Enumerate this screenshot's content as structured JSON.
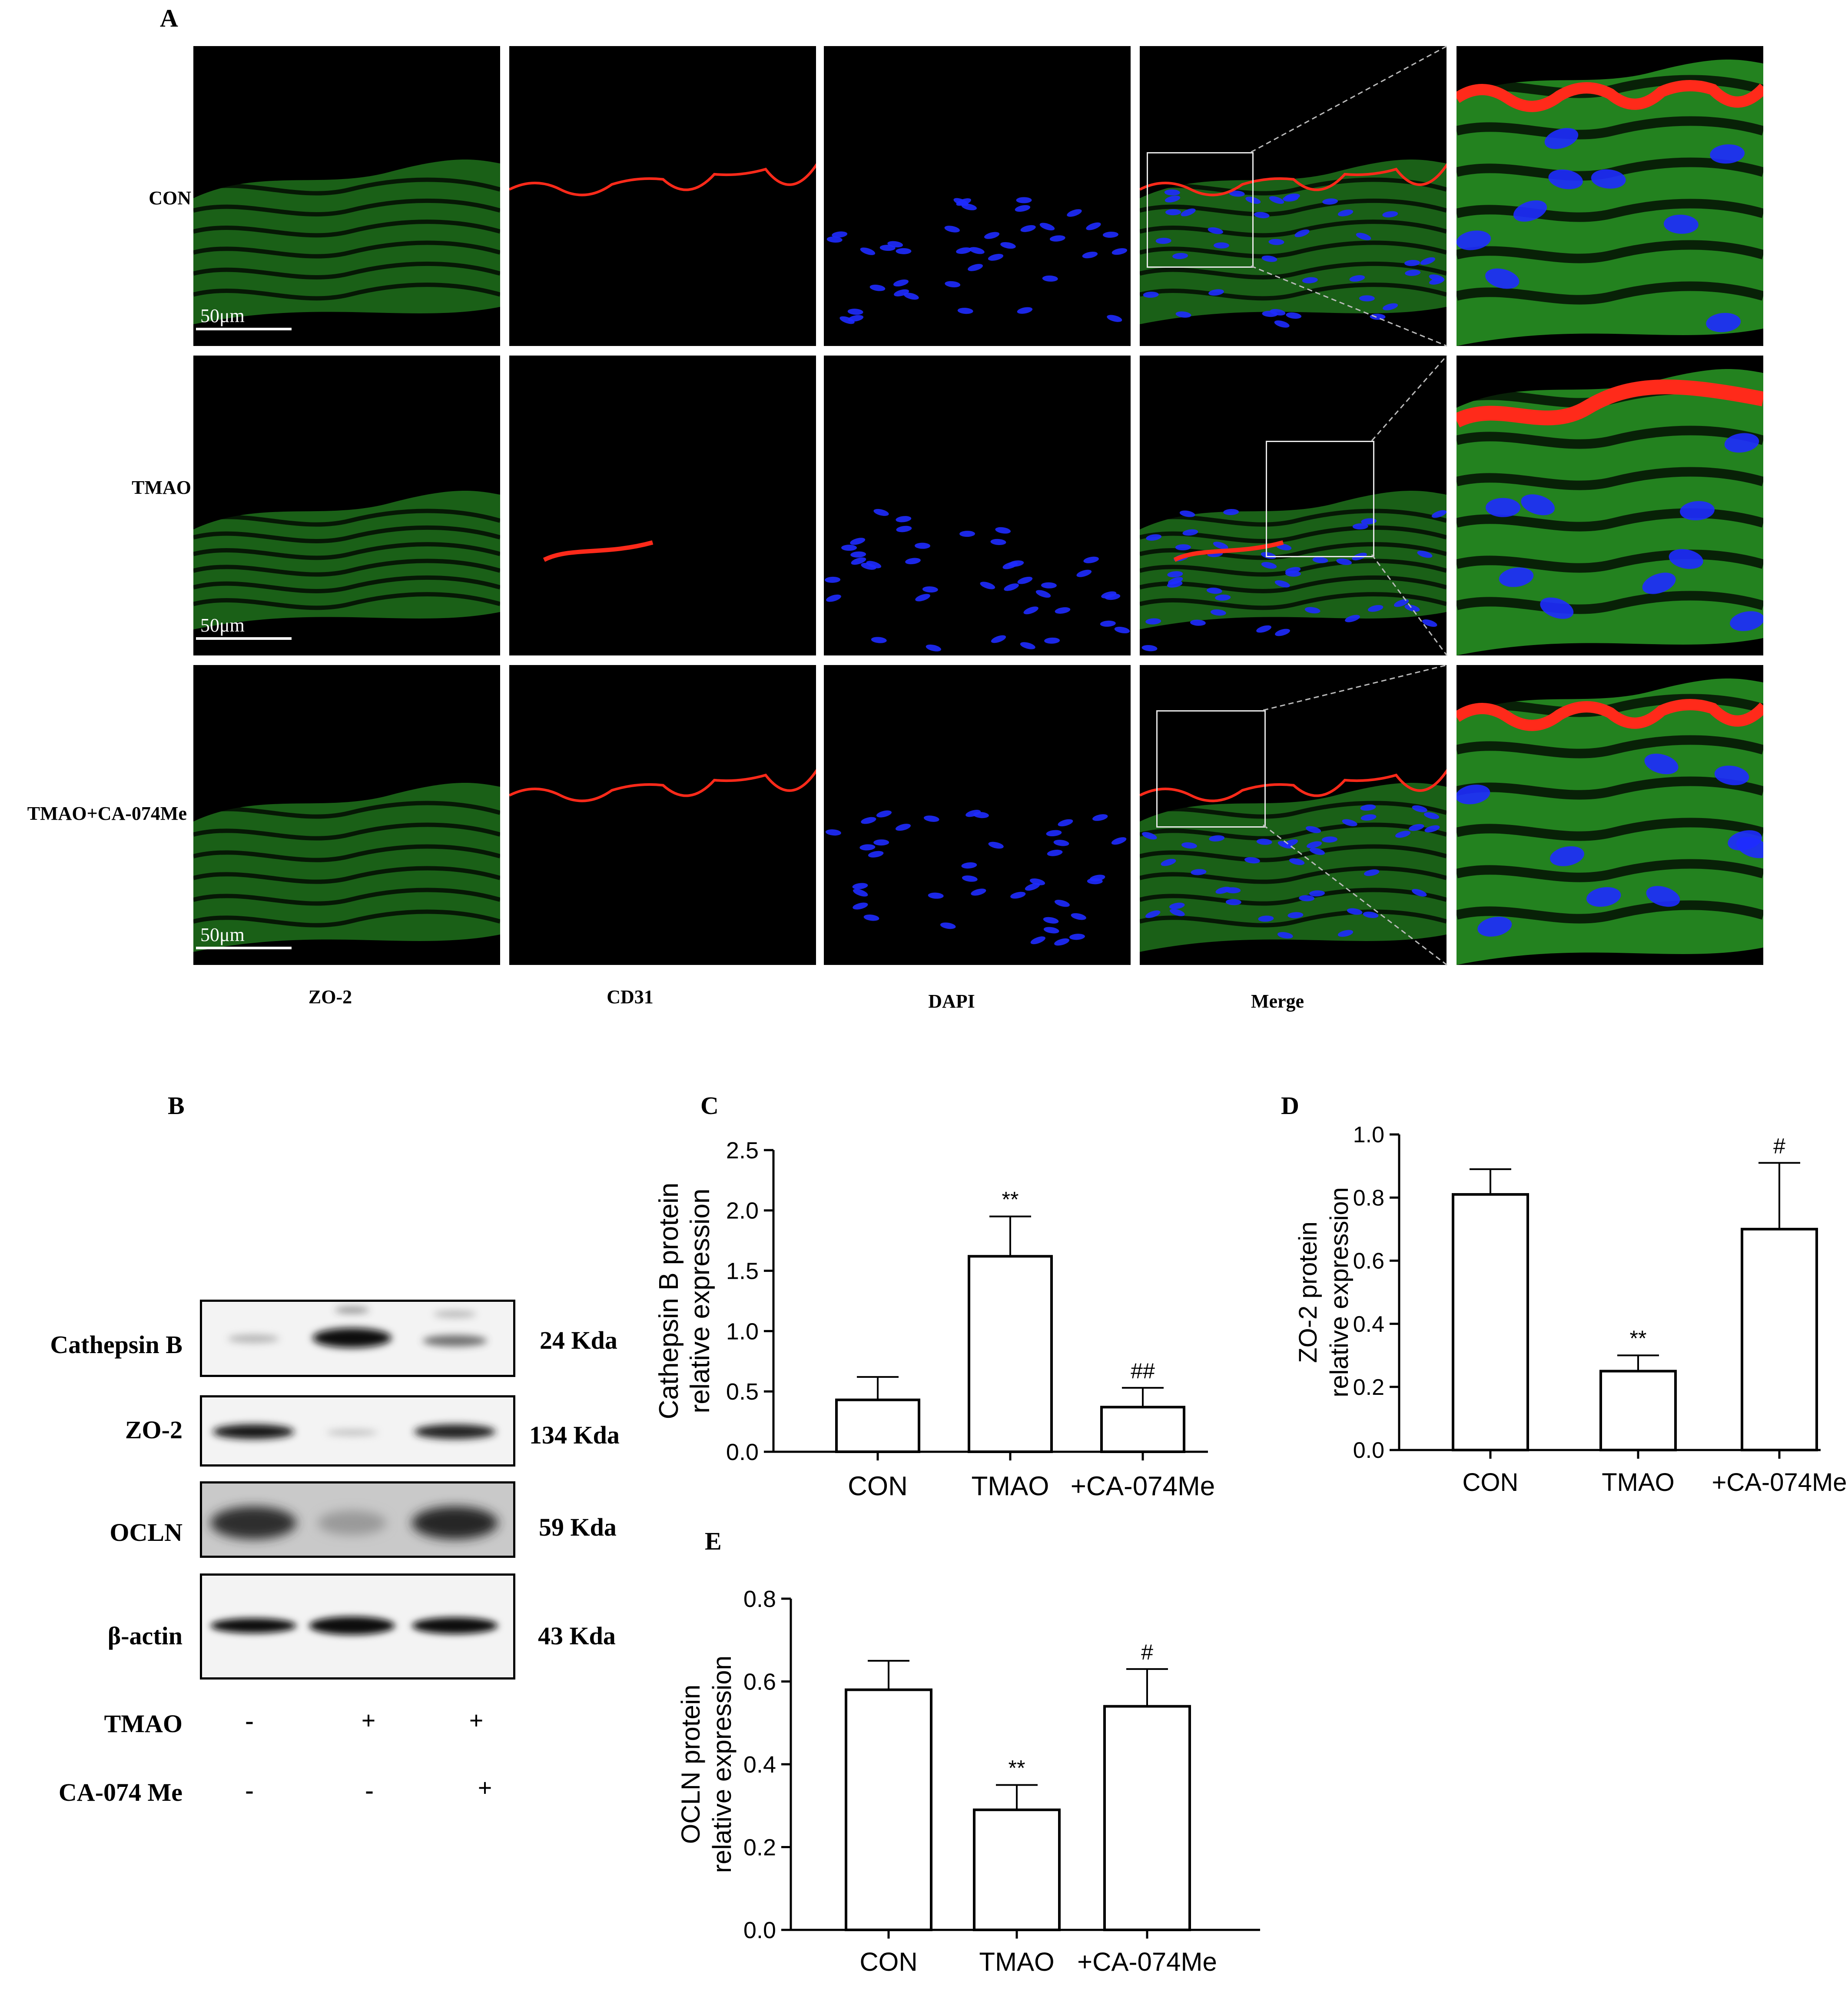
{
  "panel_a": {
    "letter": "A",
    "rows": [
      {
        "label": "CON",
        "scale": "50μm"
      },
      {
        "label": "TMAO",
        "scale": "50μm"
      },
      {
        "label": "TMAO+CA-074Me",
        "scale": "50μm"
      }
    ],
    "columns": [
      "ZO-2",
      "CD31",
      "DAPI",
      "Merge"
    ],
    "colors": {
      "green": "#2fae2a",
      "red": "#ff2a1a",
      "blue": "#1e2bff"
    }
  },
  "panel_b": {
    "letter": "B",
    "blots": [
      {
        "name": "Cathepsin B",
        "size": "24 Kda"
      },
      {
        "name": "ZO-2",
        "size": "134 Kda"
      },
      {
        "name": "OCLN",
        "size": "59 Kda"
      },
      {
        "name": "β-actin",
        "size": "43 Kda"
      }
    ],
    "treatments": [
      {
        "label": "TMAO",
        "signs": [
          "-",
          "+",
          "+"
        ]
      },
      {
        "label": "CA-074 Me",
        "signs": [
          "-",
          "-",
          "+"
        ]
      }
    ]
  },
  "chart_data": [
    {
      "id": "C",
      "letter": "C",
      "type": "bar",
      "categories": [
        "CON",
        "TMAO",
        "+CA-074Me"
      ],
      "values": [
        0.43,
        1.62,
        0.37
      ],
      "errors": [
        0.19,
        0.33,
        0.16
      ],
      "annotations": [
        "",
        "**",
        "##"
      ],
      "ylabel": [
        "Cathepsin B protein",
        "relative expression"
      ],
      "ylim": [
        0,
        2.5
      ],
      "yticks": [
        "0.0",
        "0.5",
        "1.0",
        "1.5",
        "2.0",
        "2.5"
      ]
    },
    {
      "id": "D",
      "letter": "D",
      "type": "bar",
      "categories": [
        "CON",
        "TMAO",
        "+CA-074Me"
      ],
      "values": [
        0.81,
        0.25,
        0.7
      ],
      "errors": [
        0.08,
        0.05,
        0.21
      ],
      "annotations": [
        "",
        "**",
        "#"
      ],
      "ylabel": [
        "ZO-2 protein",
        "relative expression"
      ],
      "ylim": [
        0,
        1.0
      ],
      "yticks": [
        "0.0",
        "0.2",
        "0.4",
        "0.6",
        "0.8",
        "1.0"
      ]
    },
    {
      "id": "E",
      "letter": "E",
      "type": "bar",
      "categories": [
        "CON",
        "TMAO",
        "+CA-074Me"
      ],
      "values": [
        0.58,
        0.29,
        0.54
      ],
      "errors": [
        0.07,
        0.06,
        0.09
      ],
      "annotations": [
        "",
        "**",
        "#"
      ],
      "ylabel": [
        "OCLN protein",
        "relative expression"
      ],
      "ylim": [
        0,
        0.8
      ],
      "yticks": [
        "0.0",
        "0.2",
        "0.4",
        "0.6",
        "0.8"
      ]
    }
  ]
}
